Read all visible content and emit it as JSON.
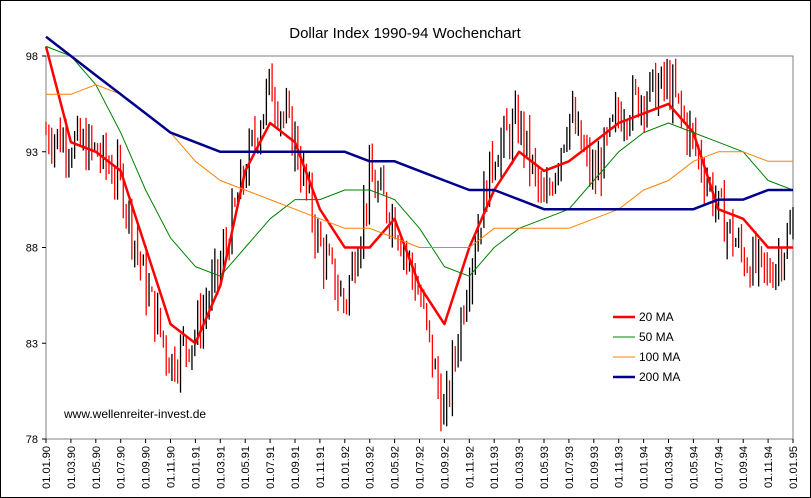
{
  "chart_data": {
    "type": "line",
    "title": "Dollar Index 1990-94 Wochenchart",
    "watermark": "www.wellenreiter-invest.de",
    "xlabel": "",
    "ylabel": "",
    "ylim": [
      78,
      98
    ],
    "yticks": [
      78,
      83,
      88,
      93,
      98
    ],
    "ytick_labels": [
      "78",
      "83",
      "88",
      "93",
      "98"
    ],
    "xtick_labels": [
      "01.01.90",
      "01.03.90",
      "01.05.90",
      "01.07.90",
      "01.09.90",
      "01.11.90",
      "01.01.91",
      "01.03.91",
      "01.05.91",
      "01.07.91",
      "01.09.91",
      "01.11.91",
      "01.01.92",
      "01.03.92",
      "01.05.92",
      "01.07.92",
      "01.09.92",
      "01.11.92",
      "01.01.93",
      "01.03.93",
      "01.05.93",
      "01.07.93",
      "01.09.93",
      "01.11.93",
      "01.01.94",
      "01.03.94",
      "01.05.94",
      "01.07.94",
      "01.09.94",
      "01.11.94",
      "01.01.95"
    ],
    "legend_position": "bottom-right",
    "price_bars": {
      "color": "#000000",
      "down_color": "#ff0000",
      "style": "weekly high-low bars",
      "weekly_close_approx": [
        {
          "date": "01.01.90",
          "value": 94.0
        },
        {
          "date": "01.03.90",
          "value": 93.5
        },
        {
          "date": "01.05.90",
          "value": 93.0
        },
        {
          "date": "01.07.90",
          "value": 91.5
        },
        {
          "date": "01.09.90",
          "value": 86.0
        },
        {
          "date": "01.11.90",
          "value": 82.0
        },
        {
          "date": "01.01.91",
          "value": 83.5
        },
        {
          "date": "01.03.91",
          "value": 87.0
        },
        {
          "date": "01.05.91",
          "value": 92.0
        },
        {
          "date": "01.07.91",
          "value": 96.5
        },
        {
          "date": "01.09.91",
          "value": 93.5
        },
        {
          "date": "01.11.91",
          "value": 88.0
        },
        {
          "date": "01.01.92",
          "value": 85.0
        },
        {
          "date": "01.03.92",
          "value": 91.5
        },
        {
          "date": "01.05.92",
          "value": 89.5
        },
        {
          "date": "01.07.92",
          "value": 85.5
        },
        {
          "date": "01.09.92",
          "value": 79.0
        },
        {
          "date": "01.11.92",
          "value": 87.0
        },
        {
          "date": "01.01.93",
          "value": 93.0
        },
        {
          "date": "01.03.93",
          "value": 94.5
        },
        {
          "date": "01.05.93",
          "value": 90.0
        },
        {
          "date": "01.07.93",
          "value": 95.0
        },
        {
          "date": "01.09.93",
          "value": 91.5
        },
        {
          "date": "01.11.93",
          "value": 95.0
        },
        {
          "date": "01.01.94",
          "value": 96.0
        },
        {
          "date": "01.03.94",
          "value": 96.5
        },
        {
          "date": "01.05.94",
          "value": 93.5
        },
        {
          "date": "01.07.94",
          "value": 90.0
        },
        {
          "date": "01.09.94",
          "value": 87.5
        },
        {
          "date": "01.11.94",
          "value": 86.5
        },
        {
          "date": "01.01.95",
          "value": 89.0
        }
      ]
    },
    "series": [
      {
        "name": "20 MA",
        "color": "#ff0000",
        "line_width": 2.5,
        "values": [
          98.5,
          93.5,
          93.0,
          92.0,
          88.0,
          84.0,
          83.0,
          86.0,
          92.0,
          94.5,
          93.5,
          90.0,
          88.0,
          88.0,
          89.5,
          86.0,
          84.0,
          88.0,
          91.0,
          93.0,
          92.0,
          92.5,
          93.5,
          94.5,
          95.0,
          95.5,
          94.0,
          90.0,
          89.5,
          88.0,
          88.0
        ]
      },
      {
        "name": "50 MA",
        "color": "#008000",
        "line_width": 1,
        "values": [
          98.5,
          98.0,
          96.5,
          94.0,
          91.0,
          88.5,
          87.0,
          86.5,
          88.0,
          89.5,
          90.5,
          90.5,
          91.0,
          91.0,
          90.5,
          89.0,
          87.0,
          86.5,
          88.0,
          89.0,
          89.5,
          90.0,
          91.5,
          93.0,
          94.0,
          94.5,
          94.0,
          93.5,
          93.0,
          91.5,
          91.0
        ]
      },
      {
        "name": "100 MA",
        "color": "#ff8000",
        "line_width": 1,
        "values": [
          96.0,
          96.0,
          96.5,
          96.0,
          95.0,
          94.0,
          92.5,
          91.5,
          91.0,
          90.5,
          90.0,
          89.5,
          89.0,
          89.0,
          88.5,
          88.0,
          88.0,
          88.0,
          89.0,
          89.0,
          89.0,
          89.0,
          89.5,
          90.0,
          91.0,
          91.5,
          92.5,
          93.0,
          93.0,
          92.5,
          92.5
        ]
      },
      {
        "name": "200 MA",
        "color": "#00008b",
        "line_width": 2.5,
        "values": [
          99.0,
          98.0,
          97.0,
          96.0,
          95.0,
          94.0,
          93.5,
          93.0,
          93.0,
          93.0,
          93.0,
          93.0,
          93.0,
          92.5,
          92.5,
          92.0,
          91.5,
          91.0,
          91.0,
          90.5,
          90.0,
          90.0,
          90.0,
          90.0,
          90.0,
          90.0,
          90.0,
          90.5,
          90.5,
          91.0,
          91.0
        ]
      }
    ]
  }
}
